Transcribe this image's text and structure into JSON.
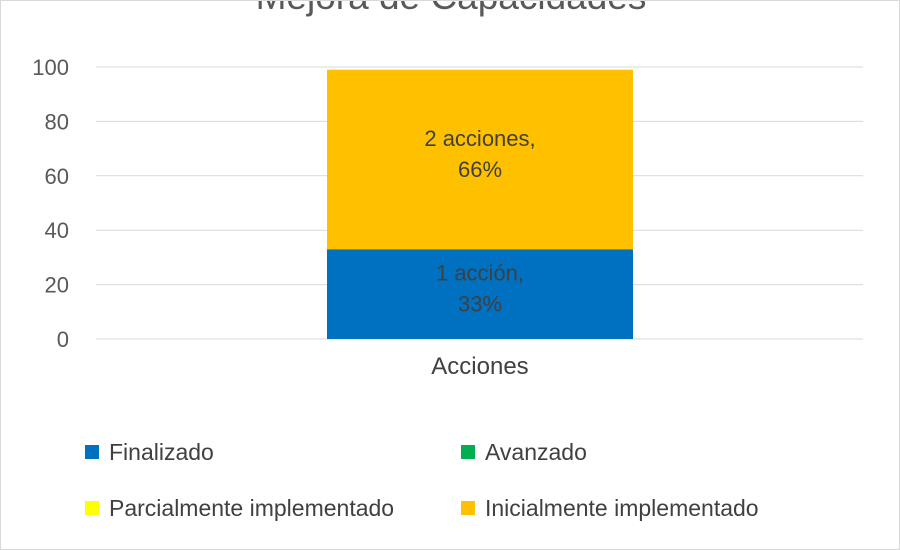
{
  "chart_data": {
    "type": "bar",
    "stacked": true,
    "title": "Mejora de Capacidades",
    "xlabel": "",
    "ylabel": "",
    "categories": [
      "Acciones"
    ],
    "ylim": [
      0,
      100
    ],
    "y_ticks": [
      0,
      20,
      40,
      60,
      80,
      100
    ],
    "grid": true,
    "legend_position": "bottom",
    "series": [
      {
        "name": "Finalizado",
        "values": [
          33
        ],
        "color": "#0070c0",
        "data_label": [
          "1 acción,",
          "33%"
        ],
        "label_color": "#404040"
      },
      {
        "name": "Avanzado",
        "values": [
          0
        ],
        "color": "#00b050"
      },
      {
        "name": "Parcialmente implementado",
        "values": [
          0
        ],
        "color": "#ffff00"
      },
      {
        "name": "Inicialmente implementado",
        "values": [
          66
        ],
        "color": "#ffc000",
        "data_label": [
          "2 acciones,",
          "66%"
        ],
        "label_color": "#404040"
      }
    ]
  }
}
